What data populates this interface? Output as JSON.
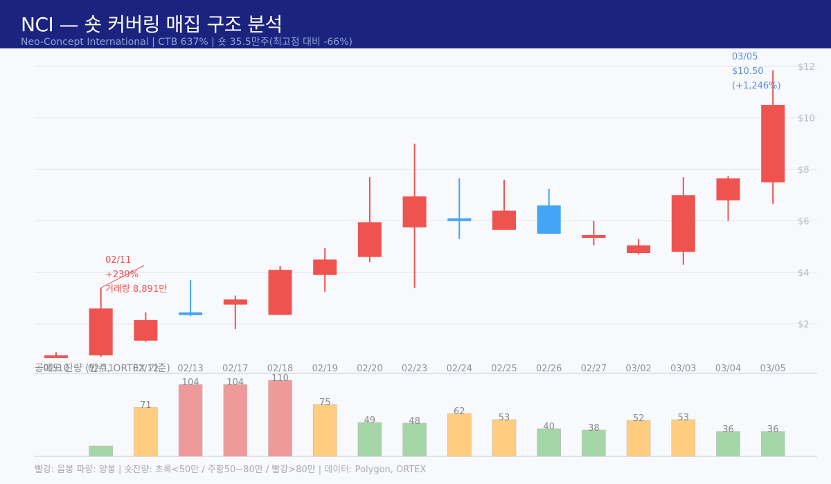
{
  "header": {
    "title": "NCI — 숏 커버링 매집 구조 분석",
    "subtitle": "Neo-Concept International  |  CTB 637%  |  숏 35.5만주(최고점 대비 -66%)"
  },
  "colors": {
    "header_bg": "#1a237e",
    "up_candle": "#ef5350",
    "down_candle": "#42a5f5",
    "vol_green": "#a5d6a7",
    "vol_orange": "#ffcc80",
    "vol_red": "#ef9a9a"
  },
  "annotations": {
    "spike": {
      "date": "02/11",
      "change": "+239%",
      "volume": "거래량 8,891만"
    },
    "last": {
      "date": "03/05",
      "price": "$10.50",
      "change": "(+1,246%)"
    }
  },
  "volume_panel_title": "공매도 잔량 (만주, ORTEX 기준)",
  "footer": "빨강: 음봉  파랑: 양봉  |  숏잔량: 초록<50만 / 주황50~80만 / 빨강>80만  |  데이터: Polygon, ORTEX",
  "chart_data": [
    {
      "type": "candlestick",
      "title": "",
      "x": [
        "02/10",
        "02/11",
        "02/12",
        "02/13",
        "02/17",
        "02/18",
        "02/19",
        "02/20",
        "02/23",
        "02/24",
        "02/25",
        "02/26",
        "02/27",
        "03/02",
        "03/03",
        "03/04",
        "03/05"
      ],
      "ohlc": [
        {
          "open": 0.78,
          "high": 0.9,
          "low": 0.72,
          "close": 0.7,
          "color": "red"
        },
        {
          "open": 2.6,
          "high": 3.4,
          "low": 0.72,
          "close": 0.78,
          "color": "red"
        },
        {
          "open": 2.15,
          "high": 2.45,
          "low": 1.3,
          "close": 1.35,
          "color": "red"
        },
        {
          "open": 2.38,
          "high": 3.7,
          "low": 2.3,
          "close": 2.45,
          "color": "blue"
        },
        {
          "open": 2.95,
          "high": 3.1,
          "low": 1.8,
          "close": 2.75,
          "color": "red"
        },
        {
          "open": 4.1,
          "high": 4.25,
          "low": 2.35,
          "close": 2.35,
          "color": "red"
        },
        {
          "open": 4.5,
          "high": 4.95,
          "low": 3.25,
          "close": 3.9,
          "color": "red"
        },
        {
          "open": 5.95,
          "high": 7.7,
          "low": 4.4,
          "close": 4.6,
          "color": "red"
        },
        {
          "open": 6.95,
          "high": 9.0,
          "low": 3.4,
          "close": 5.75,
          "color": "red"
        },
        {
          "open": 6.0,
          "high": 7.65,
          "low": 5.3,
          "close": 6.1,
          "color": "blue"
        },
        {
          "open": 6.4,
          "high": 7.6,
          "low": 5.65,
          "close": 5.65,
          "color": "red"
        },
        {
          "open": 5.5,
          "high": 7.25,
          "low": 5.5,
          "close": 6.6,
          "color": "blue"
        },
        {
          "open": 5.45,
          "high": 6.0,
          "low": 5.05,
          "close": 5.35,
          "color": "red"
        },
        {
          "open": 5.05,
          "high": 5.3,
          "low": 4.7,
          "close": 4.75,
          "color": "red"
        },
        {
          "open": 7.0,
          "high": 7.7,
          "low": 4.3,
          "close": 4.8,
          "color": "red"
        },
        {
          "open": 7.65,
          "high": 7.75,
          "low": 6.0,
          "close": 6.8,
          "color": "red"
        },
        {
          "open": 10.5,
          "high": 11.85,
          "low": 6.65,
          "close": 7.5,
          "color": "red"
        }
      ],
      "ylim": [
        0,
        12
      ],
      "yticks": [
        "$2",
        "$4",
        "$6",
        "$8",
        "$10",
        "$12"
      ],
      "ytick_values": [
        2,
        4,
        6,
        8,
        10,
        12
      ],
      "grid": true
    },
    {
      "type": "bar",
      "title": "공매도 잔량 (만주, ORTEX 기준)",
      "categories": [
        "02/10",
        "02/11",
        "02/12",
        "02/13",
        "02/17",
        "02/18",
        "02/19",
        "02/20",
        "02/23",
        "02/24",
        "02/25",
        "02/26",
        "02/27",
        "03/02",
        "03/03",
        "03/04",
        "03/05"
      ],
      "values": [
        null,
        15,
        71,
        104,
        104,
        110,
        75,
        49,
        48,
        62,
        53,
        40,
        38,
        52,
        53,
        36,
        36
      ],
      "labels": [
        "",
        "",
        "71",
        "104",
        "104",
        "110",
        "75",
        "49",
        "48",
        "62",
        "53",
        "40",
        "38",
        "52",
        "53",
        "36",
        "36"
      ],
      "ylim": [
        0,
        115
      ]
    }
  ]
}
